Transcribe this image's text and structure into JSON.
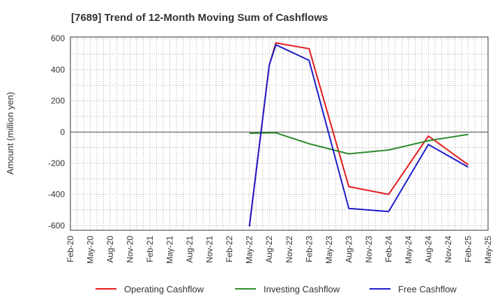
{
  "chart_data": {
    "type": "line",
    "title": "[7689]  Trend of 12-Month Moving Sum of Cashflows",
    "xlabel": "",
    "ylabel": "Amount (million yen)",
    "ylim": [
      -630,
      610
    ],
    "yticks": [
      600,
      400,
      200,
      0,
      -200,
      -400,
      -600
    ],
    "x_categories": [
      "Feb-20",
      "May-20",
      "Aug-20",
      "Nov-20",
      "Feb-21",
      "May-21",
      "Aug-21",
      "Nov-21",
      "Feb-22",
      "May-22",
      "Aug-22",
      "Nov-22",
      "Feb-23",
      "May-23",
      "Aug-23",
      "Nov-23",
      "Feb-24",
      "May-24",
      "Aug-24",
      "Nov-24",
      "Feb-25",
      "May-25"
    ],
    "grid": true,
    "legend_position": "bottom",
    "series": [
      {
        "name": "Operating Cashflow",
        "color": "#e31a1c",
        "points": [
          [
            "May-22",
            -605
          ],
          [
            "Aug-22",
            430
          ],
          [
            "Sep-22",
            572
          ],
          [
            "Feb-23",
            535
          ],
          [
            "Aug-23",
            -350
          ],
          [
            "Feb-24",
            -400
          ],
          [
            "Aug-24",
            -25
          ],
          [
            "Feb-25",
            -210
          ]
        ]
      },
      {
        "name": "Investing Cashflow",
        "color": "#2e8b2e",
        "points": [
          [
            "May-22",
            -8
          ],
          [
            "Aug-22",
            -5
          ],
          [
            "Sep-22",
            -5
          ],
          [
            "Feb-23",
            -75
          ],
          [
            "Aug-23",
            -140
          ],
          [
            "Feb-24",
            -115
          ],
          [
            "Aug-24",
            -55
          ],
          [
            "Feb-25",
            -15
          ]
        ]
      },
      {
        "name": "Free Cashflow",
        "color": "#1c1ccc",
        "points": [
          [
            "May-22",
            -605
          ],
          [
            "Aug-22",
            430
          ],
          [
            "Sep-22",
            560
          ],
          [
            "Feb-23",
            460
          ],
          [
            "Aug-23",
            -490
          ],
          [
            "Feb-24",
            -510
          ],
          [
            "Aug-24",
            -80
          ],
          [
            "Feb-25",
            -225
          ]
        ]
      }
    ]
  }
}
